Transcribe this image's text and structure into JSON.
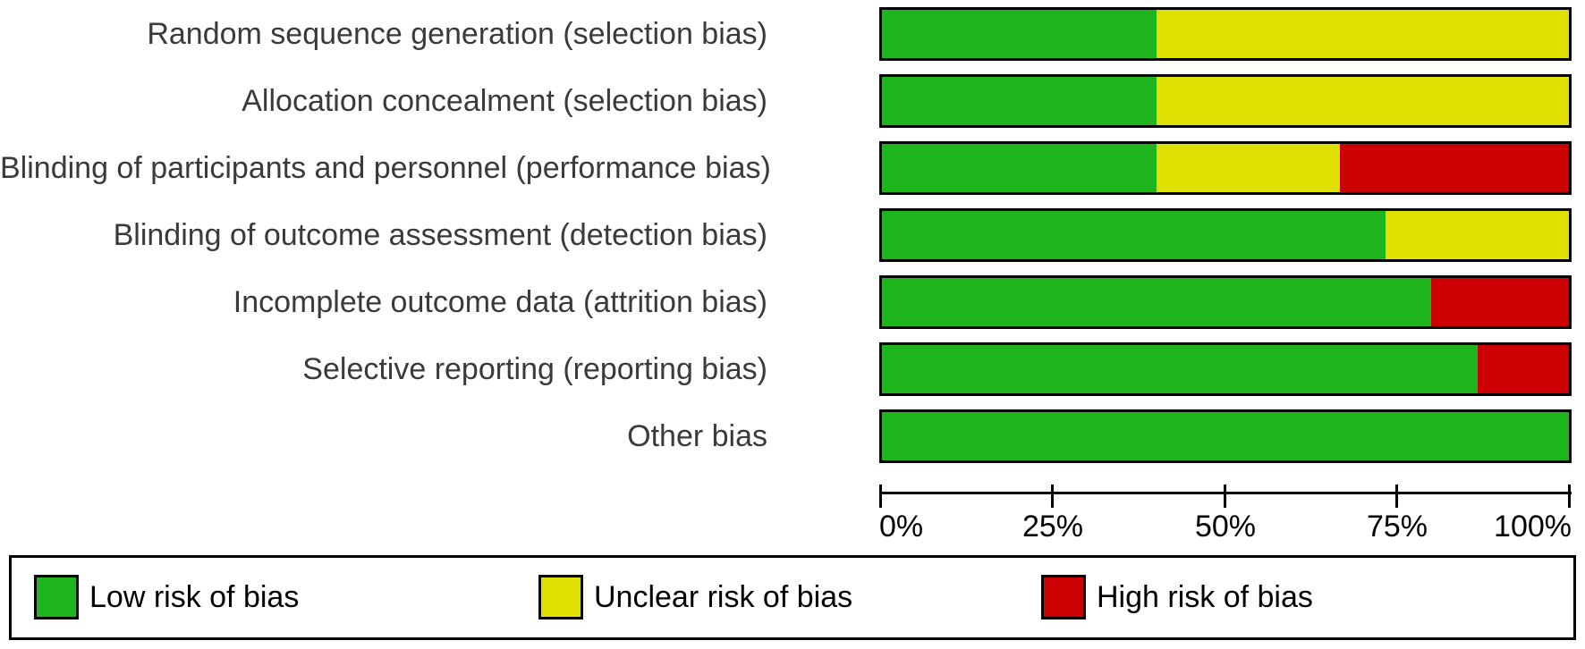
{
  "chart_data": {
    "type": "bar",
    "orientation": "horizontal-stacked",
    "title": "",
    "xlabel": "",
    "ylabel": "",
    "xlim": [
      0,
      100
    ],
    "grid": false,
    "tick_labels": [
      "0%",
      "25%",
      "50%",
      "75%",
      "100%"
    ],
    "tick_values": [
      0,
      25,
      50,
      75,
      100
    ],
    "categories": [
      "Random sequence generation (selection bias)",
      "Allocation concealment (selection bias)",
      "Blinding of participants and personnel (performance bias)",
      "Blinding of outcome assessment (detection bias)",
      "Incomplete outcome data (attrition bias)",
      "Selective reporting (reporting bias)",
      "Other bias"
    ],
    "series": [
      {
        "name": "Low risk of bias",
        "color": "#1EB41E",
        "values": [
          40,
          40,
          40,
          73.3,
          80,
          86.7,
          100
        ]
      },
      {
        "name": "Unclear risk of bias",
        "color": "#DFDF00",
        "values": [
          60,
          60,
          26.7,
          26.7,
          0,
          0,
          0
        ]
      },
      {
        "name": "High risk of bias",
        "color": "#CC0000",
        "values": [
          0,
          0,
          33.3,
          0,
          20,
          13.3,
          0
        ]
      }
    ],
    "legend_position": "bottom"
  },
  "legend": {
    "items": [
      {
        "label": "Low risk of bias",
        "color": "#1EB41E"
      },
      {
        "label": "Unclear risk of bias",
        "color": "#DFDF00"
      },
      {
        "label": "High risk of bias",
        "color": "#CC0000"
      }
    ]
  }
}
